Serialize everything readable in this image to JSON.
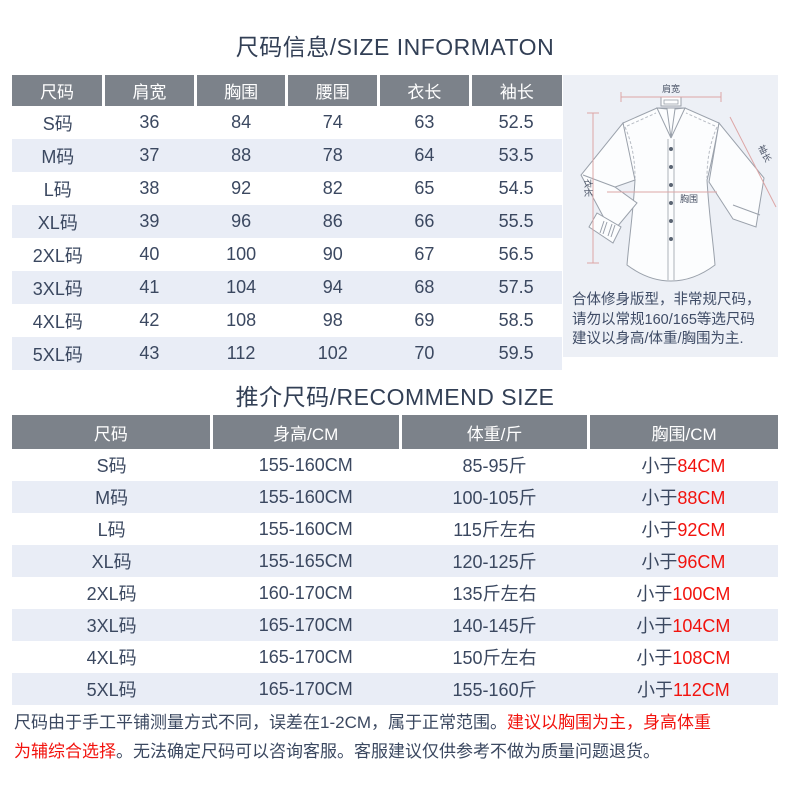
{
  "colors": {
    "header_bg": "#7c828a",
    "stripe_bg": "#e9edf6",
    "panel_bg": "#edf0f6",
    "text_dark": "#39465f",
    "highlight_red": "#f2130e"
  },
  "section_size": {
    "title": "尺码信息/SIZE INFORMATON",
    "table": {
      "headers": [
        "尺码",
        "肩宽",
        "胸围",
        "腰围",
        "衣长",
        "袖长"
      ],
      "rows": [
        {
          "cells": [
            "S码",
            "36",
            "84",
            "74",
            "63",
            "52.5"
          ]
        },
        {
          "cells": [
            "M码",
            "37",
            "88",
            "78",
            "64",
            "53.5"
          ]
        },
        {
          "cells": [
            "L码",
            "38",
            "92",
            "82",
            "65",
            "54.5"
          ]
        },
        {
          "cells": [
            "XL码",
            "39",
            "96",
            "86",
            "66",
            "55.5"
          ]
        },
        {
          "cells": [
            "2XL码",
            "40",
            "100",
            "90",
            "67",
            "56.5"
          ]
        },
        {
          "cells": [
            "3XL码",
            "41",
            "104",
            "94",
            "68",
            "57.5"
          ]
        },
        {
          "cells": [
            "4XL码",
            "42",
            "108",
            "98",
            "69",
            "58.5"
          ]
        },
        {
          "cells": [
            "5XL码",
            "43",
            "112",
            "102",
            "70",
            "59.5"
          ]
        }
      ]
    },
    "illustration": {
      "shoulder_label": "肩宽",
      "sleeve_label": "袖长",
      "length_label": "衣长",
      "chest_label": "胸围",
      "note_lines": [
        "合体修身版型，非常规尺码，",
        "请勿以常规160/165等选尺码",
        "建议以身高/体重/胸围为主."
      ]
    }
  },
  "section_recommend": {
    "title": "推介尺码/RECOMMEND SIZE",
    "table": {
      "headers": [
        "尺码",
        "身高/CM",
        "体重/斤",
        "胸围/CM"
      ],
      "rows": [
        {
          "size": "S码",
          "height": "155-160CM",
          "weight": "85-95斤",
          "chest_prefix": "小于",
          "chest_value": "84CM"
        },
        {
          "size": "M码",
          "height": "155-160CM",
          "weight": "100-105斤",
          "chest_prefix": "小于",
          "chest_value": "88CM"
        },
        {
          "size": "L码",
          "height": "155-160CM",
          "weight": "115斤左右",
          "chest_prefix": "小于",
          "chest_value": "92CM"
        },
        {
          "size": "XL码",
          "height": "155-165CM",
          "weight": "120-125斤",
          "chest_prefix": "小于",
          "chest_value": "96CM"
        },
        {
          "size": "2XL码",
          "height": "160-170CM",
          "weight": "135斤左右",
          "chest_prefix": "小于",
          "chest_value": "100CM"
        },
        {
          "size": "3XL码",
          "height": "165-170CM",
          "weight": "140-145斤",
          "chest_prefix": "小于",
          "chest_value": "104CM"
        },
        {
          "size": "4XL码",
          "height": "165-170CM",
          "weight": "150斤左右",
          "chest_prefix": "小于",
          "chest_value": "108CM"
        },
        {
          "size": "5XL码",
          "height": "165-170CM",
          "weight": "155-160斤",
          "chest_prefix": "小于",
          "chest_value": "112CM"
        }
      ]
    }
  },
  "footer": {
    "line1_dark": "尺码由于手工平铺测量方式不同，误差在1-2CM，属于正常范围。",
    "line1_red": "建议以胸围为主，身高体重",
    "line2_red": "为辅综合选择",
    "line2_dark": "。无法确定尺码可以咨询客服。客服建议仅供参考不做为质量问题退货。"
  }
}
